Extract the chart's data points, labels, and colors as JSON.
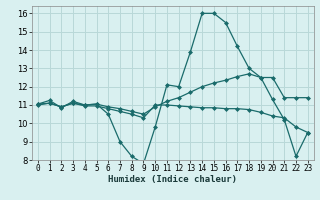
{
  "xlabel": "Humidex (Indice chaleur)",
  "bg_color": "#d9f0f0",
  "grid_color": "#b8d8d8",
  "line_color": "#1a6b6b",
  "xlim": [
    -0.5,
    23.5
  ],
  "ylim": [
    8,
    16.4
  ],
  "xticks": [
    0,
    1,
    2,
    3,
    4,
    5,
    6,
    7,
    8,
    9,
    10,
    11,
    12,
    13,
    14,
    15,
    16,
    17,
    18,
    19,
    20,
    21,
    22,
    23
  ],
  "yticks": [
    8,
    9,
    10,
    11,
    12,
    13,
    14,
    15,
    16
  ],
  "series": [
    {
      "x": [
        0,
        1,
        2,
        3,
        4,
        5,
        6,
        7,
        8,
        9,
        10,
        11,
        12,
        13,
        14,
        15,
        16,
        17,
        18,
        19,
        20,
        21,
        22,
        23
      ],
      "y": [
        11.05,
        11.25,
        10.85,
        11.2,
        11.0,
        11.05,
        10.5,
        9.0,
        8.2,
        7.8,
        9.8,
        12.1,
        12.0,
        13.9,
        16.0,
        16.0,
        15.5,
        14.2,
        13.0,
        12.5,
        11.3,
        10.2,
        8.2,
        9.5
      ]
    },
    {
      "x": [
        0,
        1,
        2,
        3,
        4,
        5,
        6,
        7,
        8,
        9,
        10,
        11,
        12,
        13,
        14,
        15,
        16,
        17,
        18,
        19,
        20,
        21,
        22,
        23
      ],
      "y": [
        11.0,
        11.1,
        10.9,
        11.1,
        11.0,
        11.05,
        10.9,
        10.8,
        10.65,
        10.5,
        10.9,
        11.2,
        11.4,
        11.7,
        12.0,
        12.2,
        12.35,
        12.55,
        12.7,
        12.5,
        12.5,
        11.4,
        11.4,
        11.4
      ]
    },
    {
      "x": [
        0,
        1,
        2,
        3,
        4,
        5,
        6,
        7,
        8,
        9,
        10,
        11,
        12,
        13,
        14,
        15,
        16,
        17,
        18,
        19,
        20,
        21,
        22,
        23
      ],
      "y": [
        11.05,
        11.1,
        10.9,
        11.1,
        10.95,
        10.95,
        10.8,
        10.65,
        10.5,
        10.3,
        11.0,
        11.0,
        10.95,
        10.9,
        10.85,
        10.85,
        10.8,
        10.8,
        10.75,
        10.6,
        10.4,
        10.3,
        9.8,
        9.5
      ]
    }
  ]
}
